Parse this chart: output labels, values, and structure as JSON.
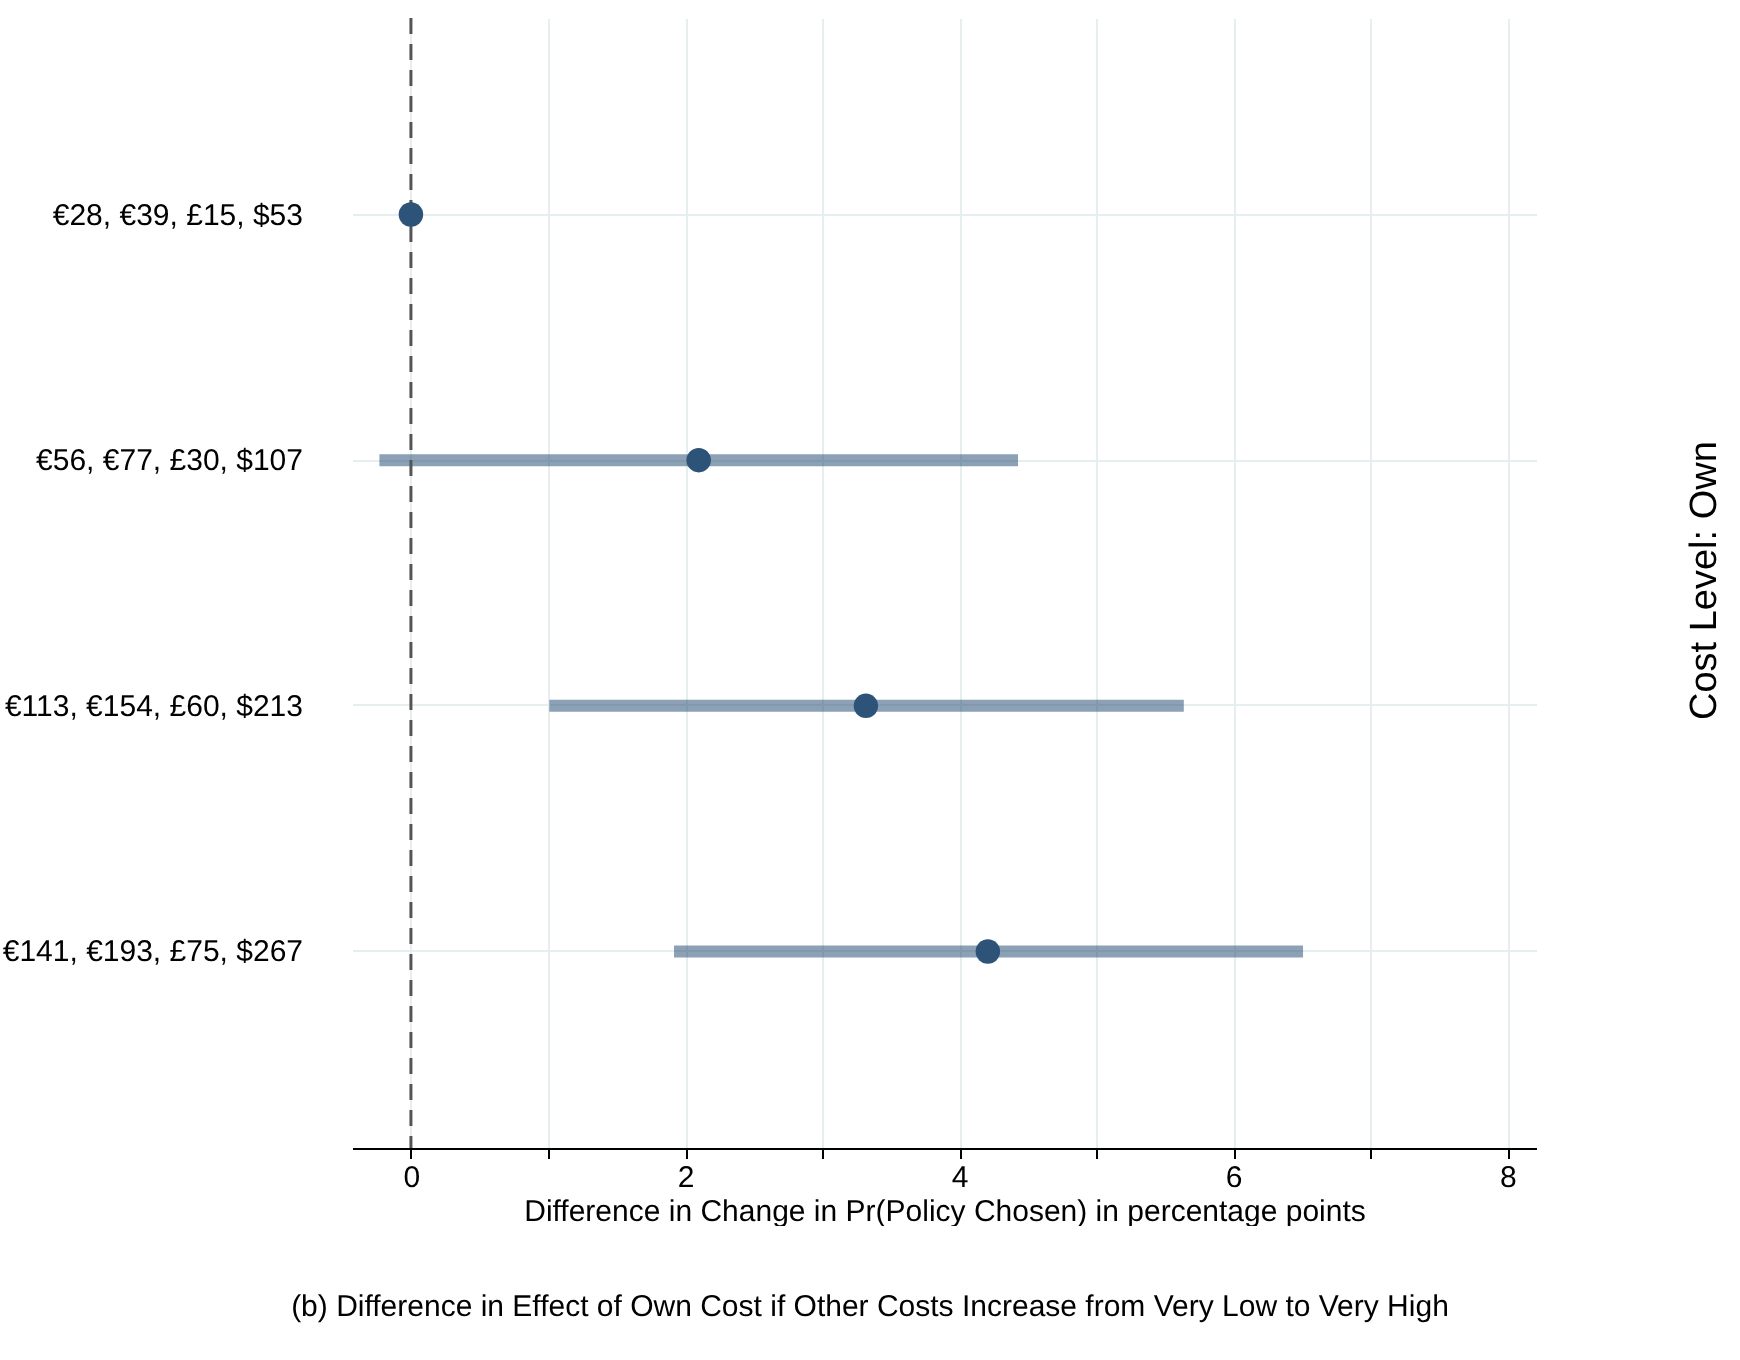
{
  "chart_data": {
    "type": "scatter",
    "orientation": "horizontal",
    "categories": [
      "€28, €39, £15, $53",
      "€56, €77, £30, $107",
      "€113, €154, £60, $213",
      "€141, €193, £75, $267"
    ],
    "series": [
      {
        "color": "#2d5478",
        "values": [
          0,
          2.1,
          3.32,
          4.21
        ],
        "errors": [
          null,
          [
            -0.23,
            4.43
          ],
          [
            1.01,
            5.64
          ],
          [
            1.92,
            6.51
          ]
        ]
      }
    ],
    "xlabel": "Difference in Change in Pr(Policy Chosen) in percentage points",
    "xlim": [
      -0.43,
      8.21
    ],
    "xticks": [
      0,
      {
        "value": 1,
        "label": null
      },
      2,
      {
        "value": 3,
        "label": null
      },
      4,
      {
        "value": 5,
        "label": null
      },
      6,
      {
        "value": 7,
        "label": null
      },
      8
    ],
    "grid": true,
    "marker": "circle",
    "ref_lines": [
      {
        "axis": "x",
        "value": 0,
        "color": "#555555",
        "line_style": "dashed"
      }
    ],
    "annotations": [
      "Cost Level: Own",
      "(b) Difference in Effect of Own Cost if Other Costs Increase from Very Low to Very High"
    ]
  }
}
